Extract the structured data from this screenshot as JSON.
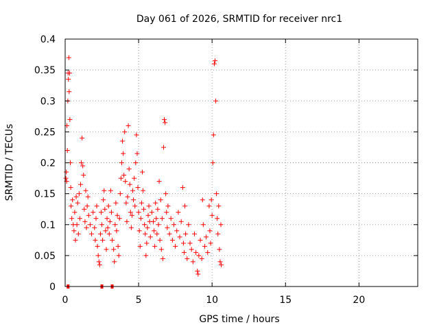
{
  "chart_data": {
    "type": "scatter",
    "title": "Day 061 of 2026, SRMTID for receiver nrc1",
    "xlabel": "GPS time / hours",
    "ylabel": "SRMTID / TECUs",
    "xlim": [
      0,
      24
    ],
    "ylim": [
      0,
      0.4
    ],
    "xticks": [
      0,
      5,
      10,
      15,
      20
    ],
    "xtick_labels": [
      "0",
      "5",
      "10",
      "15",
      "20"
    ],
    "yticks": [
      0,
      0.05,
      0.1,
      0.15,
      0.2,
      0.25,
      0.3,
      0.35,
      0.4
    ],
    "ytick_labels": [
      "0",
      "0.05",
      "0.1",
      "0.15",
      "0.2",
      "0.25",
      "0.3",
      "0.35",
      "0.4"
    ],
    "grid": true,
    "marker": "+",
    "series": [
      {
        "name": "nrc1",
        "color": "#ff0000",
        "points": [
          [
            0.05,
            0.175
          ],
          [
            0.08,
            0.185
          ],
          [
            0.1,
            0.17
          ],
          [
            0.12,
            0.26
          ],
          [
            0.15,
            0.22
          ],
          [
            0.18,
            0.3
          ],
          [
            0.2,
            0.345
          ],
          [
            0.22,
            0.335
          ],
          [
            0.25,
            0.37
          ],
          [
            0.27,
            0.315
          ],
          [
            0.3,
            0.345
          ],
          [
            0.32,
            0.27
          ],
          [
            0.35,
            0.2
          ],
          [
            0.38,
            0.16
          ],
          [
            0.4,
            0.13
          ],
          [
            0.45,
            0.11
          ],
          [
            0.5,
            0.14
          ],
          [
            0.55,
            0.1
          ],
          [
            0.6,
            0.09
          ],
          [
            0.65,
            0.12
          ],
          [
            0.7,
            0.075
          ],
          [
            0.75,
            0.145
          ],
          [
            0.8,
            0.1
          ],
          [
            0.85,
            0.135
          ],
          [
            0.9,
            0.085
          ],
          [
            0.95,
            0.15
          ],
          [
            1.0,
            0.11
          ],
          [
            1.05,
            0.165
          ],
          [
            1.1,
            0.2
          ],
          [
            1.15,
            0.24
          ],
          [
            1.2,
            0.195
          ],
          [
            1.25,
            0.18
          ],
          [
            1.3,
            0.125
          ],
          [
            1.35,
            0.105
          ],
          [
            1.4,
            0.155
          ],
          [
            1.45,
            0.095
          ],
          [
            1.5,
            0.13
          ],
          [
            1.55,
            0.145
          ],
          [
            1.6,
            0.115
          ],
          [
            1.7,
            0.1
          ],
          [
            1.8,
            0.085
          ],
          [
            1.9,
            0.12
          ],
          [
            2.0,
            0.095
          ],
          [
            2.05,
            0.075
          ],
          [
            2.1,
            0.11
          ],
          [
            2.15,
            0.13
          ],
          [
            2.2,
            0.065
          ],
          [
            2.25,
            0.05
          ],
          [
            2.3,
            0.04
          ],
          [
            2.35,
            0.035
          ],
          [
            2.4,
            0.085
          ],
          [
            2.45,
            0.12
          ],
          [
            2.5,
            0.1
          ],
          [
            2.55,
            0.075
          ],
          [
            2.6,
            0.14
          ],
          [
            2.65,
            0.155
          ],
          [
            2.7,
            0.125
          ],
          [
            2.75,
            0.09
          ],
          [
            2.8,
            0.06
          ],
          [
            2.85,
            0.11
          ],
          [
            2.9,
            0.095
          ],
          [
            2.95,
            0.13
          ],
          [
            3.0,
            0.085
          ],
          [
            3.05,
            0.105
          ],
          [
            3.1,
            0.155
          ],
          [
            3.15,
            0.12
          ],
          [
            3.2,
            0.075
          ],
          [
            3.3,
            0.06
          ],
          [
            3.35,
            0.04
          ],
          [
            3.4,
            0.1
          ],
          [
            3.45,
            0.135
          ],
          [
            3.5,
            0.09
          ],
          [
            3.55,
            0.115
          ],
          [
            3.6,
            0.065
          ],
          [
            3.65,
            0.05
          ],
          [
            3.7,
            0.11
          ],
          [
            3.75,
            0.15
          ],
          [
            3.8,
            0.175
          ],
          [
            3.85,
            0.2
          ],
          [
            3.9,
            0.235
          ],
          [
            3.95,
            0.215
          ],
          [
            4.0,
            0.18
          ],
          [
            4.05,
            0.25
          ],
          [
            4.1,
            0.17
          ],
          [
            4.15,
            0.135
          ],
          [
            4.2,
            0.105
          ],
          [
            4.25,
            0.145
          ],
          [
            4.3,
            0.26
          ],
          [
            4.35,
            0.19
          ],
          [
            4.4,
            0.165
          ],
          [
            4.45,
            0.12
          ],
          [
            4.5,
            0.095
          ],
          [
            4.55,
            0.115
          ],
          [
            4.6,
            0.155
          ],
          [
            4.65,
            0.14
          ],
          [
            4.7,
            0.175
          ],
          [
            4.75,
            0.13
          ],
          [
            4.8,
            0.2
          ],
          [
            4.85,
            0.245
          ],
          [
            4.9,
            0.215
          ],
          [
            4.95,
            0.16
          ],
          [
            5.0,
            0.12
          ],
          [
            5.05,
            0.09
          ],
          [
            5.1,
            0.065
          ],
          [
            5.15,
            0.11
          ],
          [
            5.2,
            0.135
          ],
          [
            5.25,
            0.185
          ],
          [
            5.3,
            0.155
          ],
          [
            5.35,
            0.125
          ],
          [
            5.4,
            0.1
          ],
          [
            5.45,
            0.085
          ],
          [
            5.5,
            0.05
          ],
          [
            5.55,
            0.07
          ],
          [
            5.6,
            0.095
          ],
          [
            5.65,
            0.115
          ],
          [
            5.7,
            0.13
          ],
          [
            5.75,
            0.105
          ],
          [
            5.8,
            0.08
          ],
          [
            5.9,
            0.12
          ],
          [
            6.0,
            0.105
          ],
          [
            6.05,
            0.09
          ],
          [
            6.1,
            0.065
          ],
          [
            6.15,
            0.135
          ],
          [
            6.2,
            0.11
          ],
          [
            6.25,
            0.085
          ],
          [
            6.3,
            0.125
          ],
          [
            6.35,
            0.1
          ],
          [
            6.4,
            0.17
          ],
          [
            6.45,
            0.075
          ],
          [
            6.5,
            0.14
          ],
          [
            6.55,
            0.06
          ],
          [
            6.6,
            0.11
          ],
          [
            6.65,
            0.045
          ],
          [
            6.7,
            0.225
          ],
          [
            6.75,
            0.27
          ],
          [
            6.8,
            0.265
          ],
          [
            6.85,
            0.15
          ],
          [
            6.9,
            0.12
          ],
          [
            6.95,
            0.095
          ],
          [
            7.0,
            0.13
          ],
          [
            7.1,
            0.085
          ],
          [
            7.2,
            0.11
          ],
          [
            7.3,
            0.075
          ],
          [
            7.4,
            0.1
          ],
          [
            7.5,
            0.065
          ],
          [
            7.6,
            0.09
          ],
          [
            7.7,
            0.12
          ],
          [
            7.8,
            0.08
          ],
          [
            7.9,
            0.105
          ],
          [
            8.0,
            0.16
          ],
          [
            8.05,
            0.07
          ],
          [
            8.1,
            0.055
          ],
          [
            8.15,
            0.13
          ],
          [
            8.2,
            0.085
          ],
          [
            8.3,
            0.045
          ],
          [
            8.4,
            0.1
          ],
          [
            8.5,
            0.07
          ],
          [
            8.6,
            0.06
          ],
          [
            8.7,
            0.04
          ],
          [
            8.8,
            0.085
          ],
          [
            8.9,
            0.055
          ],
          [
            9.0,
            0.025
          ],
          [
            9.05,
            0.02
          ],
          [
            9.1,
            0.05
          ],
          [
            9.2,
            0.075
          ],
          [
            9.3,
            0.045
          ],
          [
            9.35,
            0.14
          ],
          [
            9.4,
            0.1
          ],
          [
            9.5,
            0.065
          ],
          [
            9.6,
            0.08
          ],
          [
            9.7,
            0.055
          ],
          [
            9.8,
            0.13
          ],
          [
            9.85,
            0.09
          ],
          [
            9.9,
            0.07
          ],
          [
            9.95,
            0.14
          ],
          [
            10.0,
            0.115
          ],
          [
            10.05,
            0.2
          ],
          [
            10.1,
            0.245
          ],
          [
            10.15,
            0.36
          ],
          [
            10.2,
            0.365
          ],
          [
            10.25,
            0.3
          ],
          [
            10.3,
            0.15
          ],
          [
            10.35,
            0.11
          ],
          [
            10.4,
            0.085
          ],
          [
            10.45,
            0.13
          ],
          [
            10.5,
            0.06
          ],
          [
            10.55,
            0.04
          ],
          [
            10.6,
            0.1
          ],
          [
            10.62,
            0.035
          ]
        ]
      }
    ],
    "zero_markers_x": [
      0.2,
      2.5,
      3.2
    ]
  }
}
